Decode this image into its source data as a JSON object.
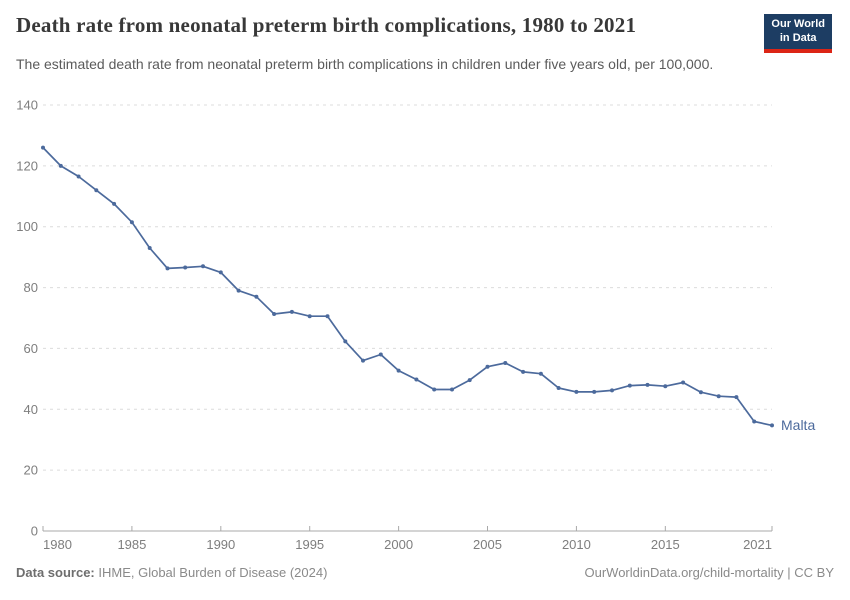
{
  "chart_data": {
    "type": "line",
    "title": "Death rate from neonatal preterm birth complications, 1980 to 2021",
    "subtitle": "The estimated death rate from neonatal preterm birth complications in children under five years old, per 100,000.",
    "x": [
      1980,
      1981,
      1982,
      1983,
      1984,
      1985,
      1986,
      1987,
      1988,
      1989,
      1990,
      1991,
      1992,
      1993,
      1994,
      1995,
      1996,
      1997,
      1998,
      1999,
      2000,
      2001,
      2002,
      2003,
      2004,
      2005,
      2006,
      2007,
      2008,
      2009,
      2010,
      2011,
      2012,
      2013,
      2014,
      2015,
      2016,
      2017,
      2018,
      2019,
      2020,
      2021
    ],
    "series": [
      {
        "name": "Malta",
        "color": "#4c6a9c",
        "values": [
          126,
          120,
          116.5,
          112,
          107.5,
          101.5,
          93,
          86.3,
          86.6,
          87,
          85,
          79,
          77,
          71.3,
          72,
          70.6,
          70.6,
          62.3,
          56,
          58,
          52.7,
          49.8,
          46.5,
          46.5,
          49.6,
          54,
          55.2,
          52.3,
          51.7,
          47,
          45.7,
          45.7,
          46.2,
          47.8,
          48,
          47.6,
          48.8,
          45.6,
          44.3,
          44,
          36,
          34.7
        ]
      }
    ],
    "xlim": [
      1980,
      2021
    ],
    "ylim": [
      0,
      140
    ],
    "yticks": [
      0,
      20,
      40,
      60,
      80,
      100,
      120,
      140
    ],
    "xticks": [
      1980,
      1985,
      1990,
      1995,
      2000,
      2005,
      2010,
      2015,
      2021
    ],
    "grid": true,
    "legend_position": "end-of-line",
    "xlabel": "",
    "ylabel": ""
  },
  "logo": {
    "line1": "Our World",
    "line2": "in Data"
  },
  "footer": {
    "source_label": "Data source:",
    "source_text": "IHME, Global Burden of Disease (2024)",
    "credit": "OurWorldinData.org/child-mortality | CC BY"
  },
  "colors": {
    "line": "#4c6a9c",
    "grid": "#dcdcdc",
    "axis": "#a9a9a9",
    "tick_text": "#7e7e7e",
    "logo_bg": "#1d3d63",
    "logo_stripe": "#dc2516"
  }
}
